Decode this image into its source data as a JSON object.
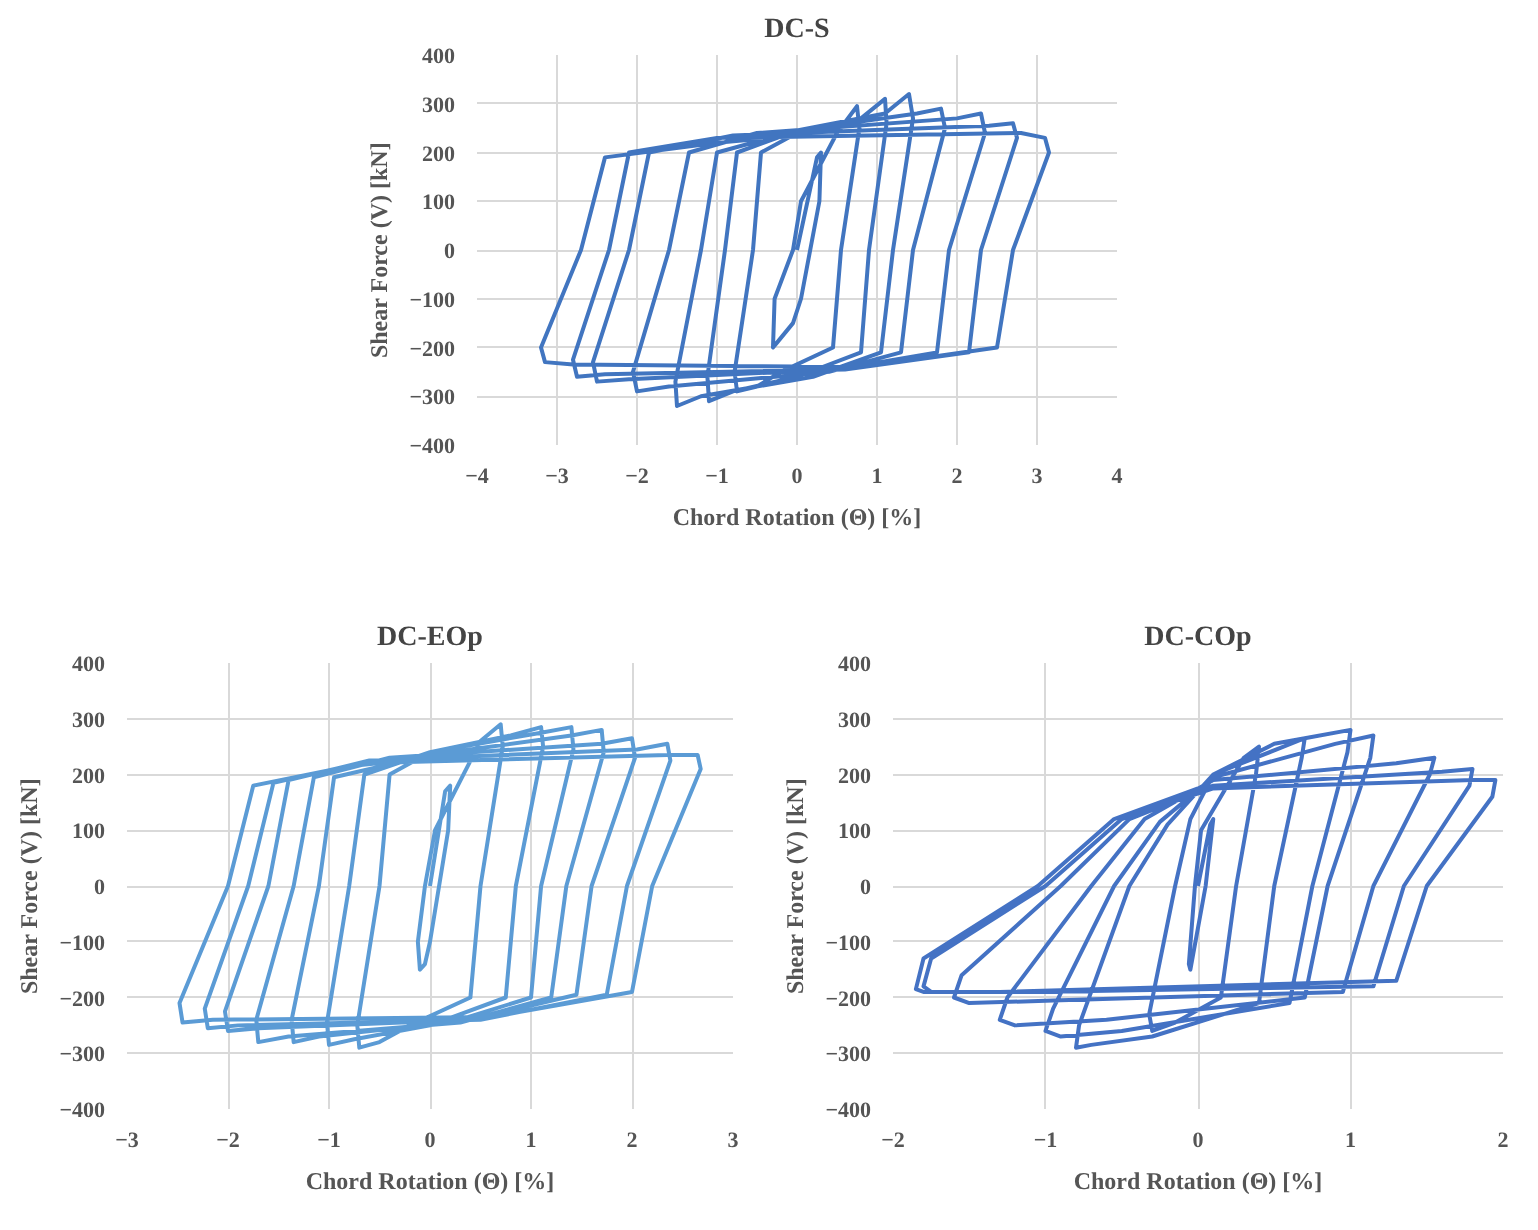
{
  "chart_data": [
    {
      "type": "line",
      "title": "DC-S",
      "xlabel": "Chord Rotation (Θ) [%]",
      "ylabel": "Shear Force (V) [kN]",
      "color": "#4175c0",
      "line_style": "solid",
      "grid": true,
      "xlim": [
        -4,
        4
      ],
      "ylim": [
        -400,
        400
      ],
      "xticks": [
        -4,
        -3,
        -2,
        -1,
        0,
        1,
        2,
        3,
        4
      ],
      "yticks": [
        -400,
        -300,
        -200,
        -100,
        0,
        100,
        200,
        300,
        400
      ],
      "x": [
        0,
        0.25,
        0.3,
        0.28,
        0.05,
        -0.05,
        -0.25,
        -0.3,
        -0.28,
        -0.05,
        0.05,
        0.5,
        0.75,
        0.78,
        0.55,
        0.45,
        -0.2,
        -0.5,
        -0.75,
        -0.78,
        -0.55,
        -0.45,
        0.0,
        0.8,
        1.1,
        1.12,
        0.9,
        0.8,
        0.0,
        -0.8,
        -1.1,
        -1.12,
        -0.9,
        -0.75,
        0,
        1.1,
        1.4,
        1.45,
        1.2,
        1.05,
        0.2,
        -1.2,
        -1.5,
        -1.52,
        -1.2,
        -1.0,
        0,
        1.5,
        1.8,
        1.85,
        1.45,
        1.3,
        0.4,
        -1.6,
        -2.0,
        -2.05,
        -1.6,
        -1.35,
        -0.5,
        2.0,
        2.3,
        2.35,
        1.9,
        1.75,
        0.5,
        -2.1,
        -2.5,
        -2.55,
        -2.1,
        -1.85,
        -0.8,
        2.4,
        2.7,
        2.75,
        2.3,
        2.15,
        0.6,
        -2.4,
        -2.75,
        -2.8,
        -2.35,
        -2.1,
        -1.0,
        2.8,
        3.1,
        3.15,
        2.7,
        2.5,
        0.8,
        -2.8,
        -3.15,
        -3.2,
        -2.7,
        -2.4,
        -1.0,
        0
      ],
      "values": [
        0,
        190,
        200,
        100,
        -100,
        -150,
        -190,
        -200,
        -100,
        0,
        100,
        240,
        295,
        250,
        0,
        -200,
        -250,
        -280,
        -290,
        -250,
        0,
        200,
        240,
        270,
        310,
        260,
        0,
        -210,
        -260,
        -290,
        -310,
        -260,
        0,
        200,
        245,
        280,
        320,
        270,
        0,
        -210,
        -260,
        -300,
        -320,
        -270,
        0,
        200,
        245,
        280,
        290,
        250,
        0,
        -210,
        -250,
        -280,
        -290,
        -250,
        0,
        200,
        240,
        270,
        280,
        240,
        0,
        -210,
        -245,
        -265,
        -270,
        -230,
        0,
        200,
        235,
        255,
        260,
        230,
        0,
        -210,
        -245,
        -255,
        -260,
        -225,
        0,
        200,
        230,
        240,
        230,
        200,
        0,
        -200,
        -240,
        -235,
        -230,
        -200,
        0,
        190,
        220,
        235
      ]
    },
    {
      "type": "line",
      "title": "DC-EOp",
      "xlabel": "Chord Rotation (Θ) [%]",
      "ylabel": "Shear Force (V) [kN]",
      "color": "#5b9bd5",
      "line_style": "solid",
      "grid": true,
      "xlim": [
        -3,
        3
      ],
      "ylim": [
        -400,
        400
      ],
      "xticks": [
        -3,
        -2,
        -1,
        0,
        1,
        2,
        3
      ],
      "yticks": [
        -400,
        -300,
        -200,
        -100,
        0,
        100,
        200,
        300,
        400
      ],
      "x": [
        0,
        0.15,
        0.2,
        0.18,
        0.0,
        -0.05,
        -0.1,
        -0.12,
        -0.05,
        0.05,
        0.5,
        0.7,
        0.72,
        0.5,
        0.4,
        -0.2,
        -0.5,
        -0.7,
        -0.72,
        -0.5,
        -0.4,
        0,
        0.8,
        1.1,
        1.12,
        0.85,
        0.75,
        0,
        -0.75,
        -1.0,
        -1.02,
        -0.8,
        -0.65,
        0,
        1.1,
        1.4,
        1.42,
        1.1,
        1.0,
        0.2,
        -1.1,
        -1.35,
        -1.37,
        -1.1,
        -0.95,
        0,
        1.4,
        1.7,
        1.72,
        1.35,
        1.2,
        0.3,
        -1.4,
        -1.7,
        -1.72,
        -1.35,
        -1.15,
        -0.4,
        1.7,
        2.0,
        2.03,
        1.6,
        1.45,
        0.4,
        -1.7,
        -2.0,
        -2.03,
        -1.6,
        -1.4,
        -0.6,
        2.05,
        2.35,
        2.38,
        1.95,
        1.75,
        0.5,
        -1.9,
        -2.2,
        -2.23,
        -1.8,
        -1.55,
        -0.7,
        2.35,
        2.65,
        2.68,
        2.2,
        2.0,
        0.6,
        -2.15,
        -2.45,
        -2.48,
        -2.0,
        -1.75,
        -0.8,
        0
      ],
      "values": [
        0,
        170,
        180,
        100,
        -100,
        -140,
        -150,
        -100,
        0,
        100,
        260,
        290,
        250,
        0,
        -200,
        -250,
        -280,
        -290,
        -250,
        0,
        200,
        240,
        270,
        285,
        250,
        0,
        -200,
        -250,
        -275,
        -285,
        -245,
        0,
        200,
        240,
        275,
        285,
        245,
        0,
        -200,
        -245,
        -270,
        -280,
        -240,
        0,
        195,
        235,
        270,
        280,
        240,
        0,
        -200,
        -245,
        -270,
        -280,
        -240,
        0,
        195,
        230,
        255,
        265,
        230,
        0,
        -195,
        -240,
        -255,
        -260,
        -225,
        0,
        190,
        225,
        245,
        255,
        225,
        0,
        -195,
        -240,
        -250,
        -255,
        -220,
        0,
        185,
        220,
        235,
        235,
        210,
        0,
        -190,
        -235,
        -240,
        -245,
        -210,
        0,
        180,
        215,
        230
      ]
    },
    {
      "type": "line",
      "title": "DC-COp",
      "xlabel": "Chord Rotation (Θ) [%]",
      "ylabel": "Shear Force (V) [kN]",
      "color": "#4472c4",
      "line_style": "solid",
      "grid": true,
      "xlim": [
        -2,
        2
      ],
      "ylim": [
        -400,
        400
      ],
      "xticks": [
        -2,
        -1,
        0,
        1,
        2
      ],
      "yticks": [
        -400,
        -300,
        -200,
        -100,
        0,
        100,
        200,
        300,
        400
      ],
      "x": [
        0,
        0.08,
        0.1,
        0.05,
        -0.03,
        -0.05,
        -0.06,
        -0.02,
        0.02,
        0.3,
        0.4,
        0.38,
        0.25,
        0.15,
        -0.15,
        -0.3,
        -0.32,
        -0.15,
        -0.05,
        0.1,
        0.5,
        0.7,
        0.68,
        0.5,
        0.4,
        -0.3,
        -0.7,
        -0.8,
        -0.78,
        -0.45,
        -0.2,
        0.1,
        0.7,
        1.0,
        0.98,
        0.75,
        0.6,
        -0.5,
        -0.9,
        -1.0,
        -0.95,
        -0.55,
        -0.25,
        0.1,
        0.9,
        1.15,
        1.13,
        0.85,
        0.7,
        -0.6,
        -1.2,
        -1.3,
        -1.25,
        -0.7,
        -0.35,
        0.1,
        1.3,
        1.55,
        1.52,
        1.15,
        0.95,
        -0.9,
        -1.5,
        -1.6,
        -1.55,
        -0.9,
        -0.45,
        0.1,
        1.6,
        1.8,
        1.78,
        1.35,
        1.15,
        -1.1,
        -1.75,
        -1.8,
        -1.75,
        -1.0,
        -0.5,
        0.1,
        1.8,
        1.95,
        1.93,
        1.5,
        1.3,
        -1.3,
        -1.8,
        -1.85,
        -1.8,
        -1.05,
        -0.55,
        0
      ],
      "values": [
        0,
        110,
        120,
        0,
        -120,
        -150,
        -140,
        0,
        100,
        230,
        250,
        200,
        0,
        -200,
        -245,
        -260,
        -230,
        0,
        120,
        200,
        255,
        265,
        230,
        0,
        -210,
        -270,
        -285,
        -290,
        -250,
        0,
        110,
        200,
        265,
        280,
        240,
        0,
        -210,
        -260,
        -270,
        -260,
        -220,
        0,
        115,
        195,
        255,
        270,
        230,
        0,
        -200,
        -240,
        -250,
        -240,
        -200,
        0,
        120,
        190,
        220,
        230,
        200,
        0,
        -190,
        -205,
        -210,
        -200,
        -160,
        0,
        120,
        180,
        205,
        210,
        180,
        0,
        -180,
        -190,
        -190,
        -180,
        -130,
        0,
        120,
        175,
        190,
        190,
        160,
        0,
        -170,
        -190,
        -190,
        -185,
        -130,
        0,
        120,
        175
      ]
    }
  ]
}
